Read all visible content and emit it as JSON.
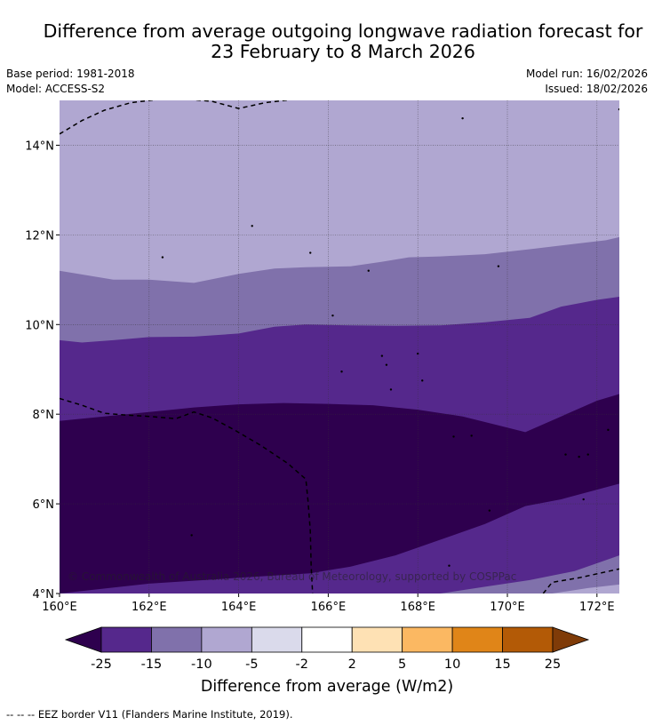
{
  "header": {
    "title_line1": "Difference from average outgoing longwave radiation forecast for",
    "title_line2": "23 February to 8 March 2026",
    "base_period": "Base period: 1981-2018",
    "model": "Model: ACCESS-S2",
    "model_run": "Model run: 16/02/2026",
    "issued": "Issued: 18/02/2026"
  },
  "chart_data": {
    "type": "filled-contour-map",
    "title": "Difference from average outgoing longwave radiation forecast for 23 February to 8 March 2026",
    "xlim": [
      160,
      172.5
    ],
    "ylim": [
      4,
      15
    ],
    "x_ticks": [
      160,
      162,
      164,
      166,
      168,
      170,
      172
    ],
    "x_tick_labels": [
      "160°E",
      "162°E",
      "164°E",
      "166°E",
      "168°E",
      "170°E",
      "172°E"
    ],
    "y_ticks": [
      4,
      6,
      8,
      10,
      12,
      14
    ],
    "y_tick_labels": [
      "4°N",
      "6°N",
      "8°N",
      "10°N",
      "12°N",
      "14°N"
    ],
    "grid": true,
    "contour_boundaries": [
      {
        "between": "-25_-15",
        "points": [
          [
            160,
            4
          ],
          [
            162,
            4.22
          ],
          [
            164,
            4.35
          ],
          [
            165.6,
            4.45
          ],
          [
            166.5,
            4.6
          ],
          [
            167.5,
            4.85
          ],
          [
            168.5,
            5.2
          ],
          [
            169.5,
            5.55
          ],
          [
            170.4,
            5.95
          ],
          [
            171.2,
            6.1
          ],
          [
            172.5,
            6.45
          ]
        ]
      },
      {
        "between": "-15_-10",
        "points": [
          [
            168.5,
            4
          ],
          [
            169.5,
            4.15
          ],
          [
            170.5,
            4.3
          ],
          [
            171.5,
            4.5
          ],
          [
            172.5,
            4.85
          ]
        ]
      },
      {
        "between": "-10_-5",
        "points": [
          [
            171,
            4
          ],
          [
            171.8,
            4.12
          ],
          [
            172.5,
            4.2
          ]
        ]
      },
      {
        "between": "-25_-15_north",
        "points": [
          [
            160,
            7.85
          ],
          [
            161,
            7.95
          ],
          [
            162,
            8.05
          ],
          [
            163,
            8.15
          ],
          [
            164,
            8.22
          ],
          [
            165,
            8.25
          ],
          [
            166,
            8.23
          ],
          [
            167,
            8.2
          ],
          [
            168,
            8.1
          ],
          [
            169,
            7.95
          ],
          [
            169.8,
            7.75
          ],
          [
            170.4,
            7.6
          ],
          [
            171.2,
            7.95
          ],
          [
            172,
            8.3
          ],
          [
            172.5,
            8.45
          ]
        ]
      },
      {
        "between": "-15_-10_north",
        "points": [
          [
            160,
            9.65
          ],
          [
            160.5,
            9.6
          ],
          [
            161.2,
            9.65
          ],
          [
            162,
            9.72
          ],
          [
            163,
            9.73
          ],
          [
            164,
            9.8
          ],
          [
            164.8,
            9.95
          ],
          [
            165.5,
            10
          ],
          [
            166.5,
            9.98
          ],
          [
            167.5,
            9.97
          ],
          [
            168.5,
            9.98
          ],
          [
            169.5,
            10.05
          ],
          [
            170.5,
            10.15
          ],
          [
            171.2,
            10.4
          ],
          [
            172,
            10.55
          ],
          [
            172.5,
            10.62
          ]
        ]
      },
      {
        "between": "-10_-5_north",
        "points": [
          [
            160,
            11.2
          ],
          [
            161.2,
            11
          ],
          [
            162,
            11
          ],
          [
            163,
            10.93
          ],
          [
            164,
            11.13
          ],
          [
            164.8,
            11.25
          ],
          [
            165.5,
            11.28
          ],
          [
            166.5,
            11.3
          ],
          [
            167.2,
            11.4
          ],
          [
            167.8,
            11.5
          ],
          [
            168.5,
            11.52
          ],
          [
            169.5,
            11.57
          ],
          [
            170.5,
            11.68
          ],
          [
            171.5,
            11.8
          ],
          [
            172.2,
            11.88
          ],
          [
            172.5,
            11.95
          ]
        ]
      }
    ],
    "eez_lines": [
      [
        [
          160,
          14.25
        ],
        [
          160.5,
          14.55
        ],
        [
          161,
          14.78
        ],
        [
          161.6,
          14.95
        ],
        [
          162.2,
          15.02
        ],
        [
          162.8,
          15.03
        ],
        [
          163.4,
          14.98
        ],
        [
          164,
          14.82
        ],
        [
          164.6,
          14.95
        ],
        [
          165.2,
          15.02
        ]
      ],
      [
        [
          160,
          8.35
        ],
        [
          160.5,
          8.2
        ],
        [
          161,
          8.02
        ],
        [
          161.5,
          7.98
        ],
        [
          162,
          7.95
        ],
        [
          162.6,
          7.9
        ],
        [
          163,
          8.05
        ],
        [
          163.4,
          7.92
        ],
        [
          163.9,
          7.65
        ],
        [
          164.5,
          7.3
        ],
        [
          165.1,
          6.9
        ],
        [
          165.5,
          6.55
        ],
        [
          165.55,
          6.05
        ],
        [
          165.6,
          5.4
        ],
        [
          165.62,
          4.6
        ],
        [
          165.65,
          4.0
        ]
      ],
      [
        [
          170.8,
          4.0
        ],
        [
          171,
          4.25
        ],
        [
          171.6,
          4.35
        ],
        [
          172.5,
          4.55
        ]
      ]
    ],
    "islands": [
      [
        162.3,
        11.5
      ],
      [
        164.3,
        12.2
      ],
      [
        165.6,
        11.6
      ],
      [
        166.1,
        10.2
      ],
      [
        166.9,
        11.2
      ],
      [
        169.8,
        11.3
      ],
      [
        169,
        14.6
      ],
      [
        172.5,
        14.8
      ],
      [
        167.2,
        9.3
      ],
      [
        167.3,
        9.1
      ],
      [
        168,
        9.35
      ],
      [
        166.3,
        8.95
      ],
      [
        168.1,
        8.75
      ],
      [
        167.4,
        8.55
      ],
      [
        169.2,
        7.52
      ],
      [
        168.8,
        7.5
      ],
      [
        171.3,
        7.1
      ],
      [
        171.6,
        7.05
      ],
      [
        171.8,
        7.1
      ],
      [
        171.7,
        6.1
      ],
      [
        169.6,
        5.85
      ],
      [
        168.7,
        4.62
      ],
      [
        162.95,
        5.3
      ],
      [
        172.25,
        7.65
      ]
    ],
    "attribution": "© Commonwealth of Australia 2026, Bureau of Meteorology, supported by COSPPac",
    "colorbar": {
      "title": "Difference from average (W/m2)",
      "tick_labels": [
        "-25",
        "-15",
        "-10",
        "-5",
        "-2",
        "2",
        "5",
        "10",
        "15",
        "25"
      ],
      "colors": [
        "#2e004e",
        "#55288c",
        "#8071ab",
        "#b0a7d1",
        "#dadaeb",
        "#ffffff",
        "#fee1b4",
        "#fbb862",
        "#e08518",
        "#b35a06",
        "#7f3b08"
      ]
    },
    "level_colors": {
      "-25_-15": "#2e004e",
      "-15_-10": "#55288c",
      "-10_-5": "#8071ab",
      "-5_-2": "#b0a7d1"
    }
  },
  "footer": {
    "legend_line_symbol": "--  --  --",
    "legend_text": "EEZ border V11 (Flanders Marine Institute, 2019)."
  }
}
